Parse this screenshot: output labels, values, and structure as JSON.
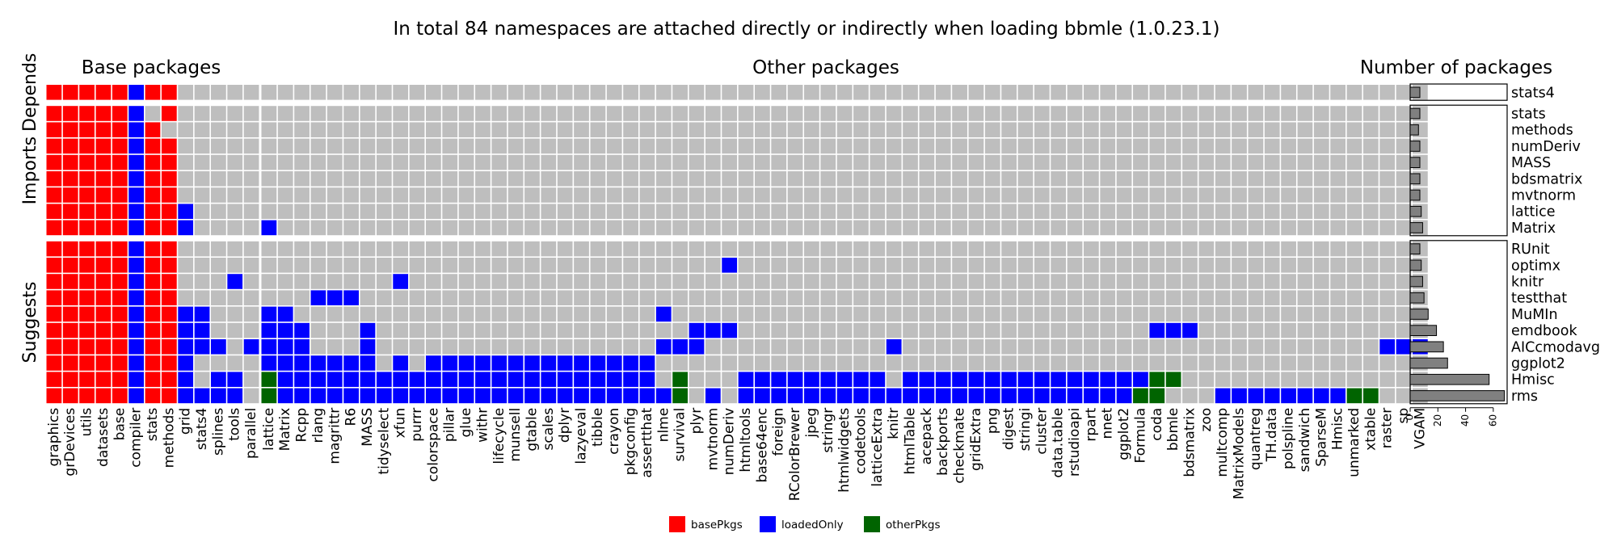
{
  "title": "In total 84 namespaces are attached directly or indirectly when loading bbmle (1.0.23.1)",
  "panels": {
    "base": "Base packages",
    "other": "Other packages",
    "count": "Number of packages"
  },
  "groups": [
    "Depends",
    "Imports",
    "Suggests"
  ],
  "colors": {
    "basePkgs": "#ff0000",
    "loadedOnly": "#0000ff",
    "otherPkgs": "#006400",
    "empty": "#bebebe",
    "bar": "#808080"
  },
  "legend": [
    {
      "label": "basePkgs",
      "color": "#ff0000"
    },
    {
      "label": "loadedOnly",
      "color": "#0000ff"
    },
    {
      "label": "otherPkgs",
      "color": "#006400"
    }
  ],
  "chart_data": {
    "type": "heatmap",
    "base_columns": [
      "graphics",
      "grDevices",
      "utils",
      "datasets",
      "base",
      "compiler",
      "stats",
      "methods",
      "grid",
      "stats4",
      "splines",
      "tools",
      "parallel"
    ],
    "other_columns": [
      "lattice",
      "Matrix",
      "Rcpp",
      "rlang",
      "magrittr",
      "R6",
      "MASS",
      "tidyselect",
      "xfun",
      "purrr",
      "colorspace",
      "pillar",
      "glue",
      "withr",
      "lifecycle",
      "munsell",
      "gtable",
      "scales",
      "dplyr",
      "lazyeval",
      "tibble",
      "crayon",
      "pkgconfig",
      "assertthat",
      "nlme",
      "survival",
      "plyr",
      "mvtnorm",
      "numDeriv",
      "htmltools",
      "base64enc",
      "foreign",
      "RColorBrewer",
      "jpeg",
      "stringr",
      "htmlwidgets",
      "codetools",
      "latticeExtra",
      "knitr",
      "htmlTable",
      "acepack",
      "backports",
      "checkmate",
      "gridExtra",
      "png",
      "digest",
      "stringi",
      "cluster",
      "data.table",
      "rstudioapi",
      "rpart",
      "nnet",
      "ggplot2",
      "Formula",
      "coda",
      "bbmle",
      "bdsmatrix",
      "zoo",
      "multcomp",
      "MatrixModels",
      "quantreg",
      "TH.data",
      "polspline",
      "sandwich",
      "SparseM",
      "Hmisc",
      "unmarked",
      "xtable",
      "raster",
      "sp",
      "VGAM"
    ],
    "rows": [
      {
        "name": "stats4",
        "group": "Depends",
        "count": 7,
        "base": "rrrrrbrr.....",
        "other": ""
      },
      {
        "name": "stats",
        "group": "Imports",
        "count": 7,
        "base": "rrrrrb.r.....",
        "other": ""
      },
      {
        "name": "methods",
        "group": "Imports",
        "count": 6,
        "base": "rrrrrbr......",
        "other": ""
      },
      {
        "name": "numDeriv",
        "group": "Imports",
        "count": 7,
        "base": "rrrrrbrr.....",
        "other": ""
      },
      {
        "name": "MASS",
        "group": "Imports",
        "count": 7,
        "base": "rrrrrbrr.....",
        "other": ""
      },
      {
        "name": "bdsmatrix",
        "group": "Imports",
        "count": 7,
        "base": "rrrrrbrr.....",
        "other": ""
      },
      {
        "name": "mvtnorm",
        "group": "Imports",
        "count": 7,
        "base": "rrrrrbrr.....",
        "other": ""
      },
      {
        "name": "lattice",
        "group": "Imports",
        "count": 8,
        "base": "rrrrrbrrb....",
        "other": ""
      },
      {
        "name": "Matrix",
        "group": "Imports",
        "count": 9,
        "base": "rrrrrbrrb....",
        "other": "b"
      },
      {
        "name": "RUnit",
        "group": "Suggests",
        "count": 7,
        "base": "rrrrrbrr.....",
        "other": ""
      },
      {
        "name": "optimx",
        "group": "Suggests",
        "count": 8,
        "base": "rrrrrbrr.....",
        "other": "............................b"
      },
      {
        "name": "knitr",
        "group": "Suggests",
        "count": 9,
        "base": "rrrrrbrr...b.",
        "other": "........b"
      },
      {
        "name": "testthat",
        "group": "Suggests",
        "count": 10,
        "base": "rrrrrbrr.....",
        "other": "...bbb"
      },
      {
        "name": "MuMIn",
        "group": "Suggests",
        "count": 13,
        "base": "rrrrrbrrbb...",
        "other": "bb......................b"
      },
      {
        "name": "emdbook",
        "group": "Suggests",
        "count": 19,
        "base": "rrrrrbrrbb...",
        "other": "bbb...b...................bbb.........................bbb"
      },
      {
        "name": "AICcmodavg",
        "group": "Suggests",
        "count": 24,
        "base": "rrrrrbrrbbb.b",
        "other": "bbb...b.................bbb...........b.............................bbbbb"
      },
      {
        "name": "ggplot2",
        "group": "Suggests",
        "count": 27,
        "base": "rrrrrbrrb....",
        "other": "bbbbbbb.b.bbbbbbbbbbbbbb"
      },
      {
        "name": "Hmisc",
        "group": "Suggests",
        "count": 57,
        "base": "rrrrrbrrb.bb.",
        "other": "gbbbbbbbbbbbbbbbbbbbbbbb.g...bbbbbbbbb.bbbbbbbbbbbbbbbgg"
      },
      {
        "name": "rms",
        "group": "Suggests",
        "count": 68,
        "base": "rrrrrbrrbbbb.",
        "other": "gbbbbbbbbbbbbbbbbbbbbbbbbg.b.bbbbbbbbbbbbbbbbbbbbbbbbgg...bbbbbbbbgg"
      }
    ],
    "count_axis": {
      "ticks": [
        0,
        20,
        40,
        60
      ],
      "lim": [
        0,
        70
      ]
    }
  }
}
